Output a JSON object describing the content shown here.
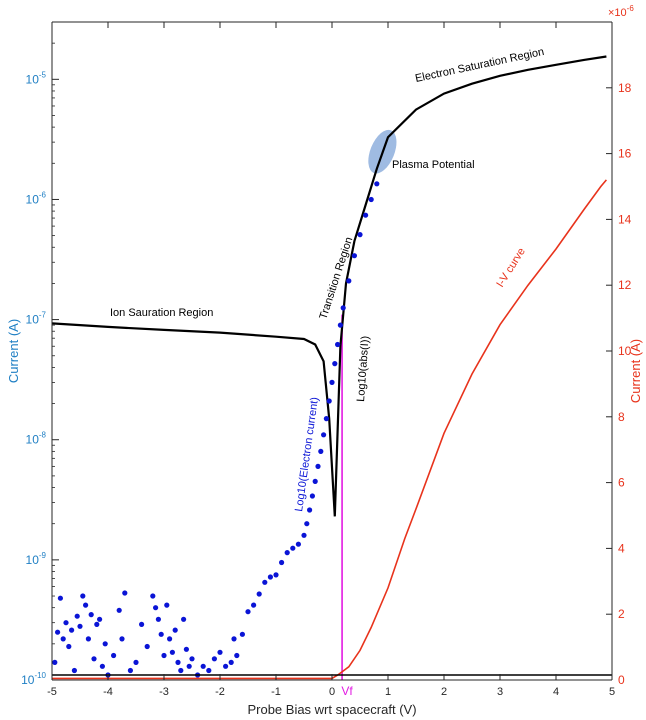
{
  "chart_data": {
    "type": "line",
    "xlabel": "Probe Bias wrt spacecraft (V)",
    "xlim": [
      -5,
      5
    ],
    "xticks": [
      "-5",
      "-4",
      "-3",
      "-2",
      "-1",
      "0",
      "1",
      "2",
      "3",
      "4",
      "5"
    ],
    "y_left": {
      "label": "Current (A)",
      "scale": "log",
      "lim": [
        1e-10,
        3e-05
      ],
      "ticks": [
        {
          "base": "10",
          "exp": "-10",
          "value": 1e-10
        },
        {
          "base": "10",
          "exp": "-9",
          "value": 1e-09
        },
        {
          "base": "10",
          "exp": "-8",
          "value": 1e-08
        },
        {
          "base": "10",
          "exp": "-7",
          "value": 1e-07
        },
        {
          "base": "10",
          "exp": "-6",
          "value": 1e-06
        },
        {
          "base": "10",
          "exp": "-5",
          "value": 1e-05
        }
      ],
      "color": "#1f7fc4"
    },
    "y_right": {
      "label": "Current (A)",
      "scale": "linear",
      "lim": [
        0,
        20
      ],
      "multiplier": "×10",
      "multiplier_exp": "-6",
      "ticks": [
        "0",
        "2",
        "4",
        "6",
        "8",
        "10",
        "12",
        "14",
        "16",
        "18"
      ],
      "color": "#e8331c"
    },
    "series": [
      {
        "axis": "left",
        "style": "line",
        "color": "#000000",
        "x": [
          -5,
          -4,
          -3,
          -2,
          -1,
          -0.5,
          -0.3,
          -0.15,
          -0.05,
          0.05,
          0.15,
          0.25,
          0.4,
          0.6,
          0.8,
          1.0,
          1.5,
          2.0,
          2.5,
          3.0,
          3.5,
          4.0,
          4.5,
          4.9
        ],
        "y": [
          9.3e-08,
          8.7e-08,
          8.2e-08,
          7.8e-08,
          7.2e-08,
          6.9e-08,
          6.2e-08,
          4.5e-08,
          1.5e-08,
          2.3e-09,
          6e-08,
          2e-07,
          4.5e-07,
          9e-07,
          1.8e-06,
          3.3e-06,
          5.6e-06,
          7.6e-06,
          9.2e-06,
          1.07e-05,
          1.2e-05,
          1.32e-05,
          1.45e-05,
          1.55e-05
        ]
      },
      {
        "axis": "left",
        "style": "markers",
        "color": "#0a14d6",
        "x": [
          -4.95,
          -4.9,
          -4.85,
          -4.8,
          -4.75,
          -4.7,
          -4.65,
          -4.6,
          -4.55,
          -4.5,
          -4.45,
          -4.4,
          -4.35,
          -4.3,
          -4.25,
          -4.2,
          -4.15,
          -4.1,
          -4.05,
          -4.0,
          -3.9,
          -3.8,
          -3.75,
          -3.7,
          -3.6,
          -3.5,
          -3.4,
          -3.3,
          -3.2,
          -3.15,
          -3.1,
          -3.05,
          -3.0,
          -2.95,
          -2.9,
          -2.85,
          -2.8,
          -2.75,
          -2.7,
          -2.65,
          -2.6,
          -2.55,
          -2.5,
          -2.4,
          -2.3,
          -2.2,
          -2.1,
          -2.0,
          -1.9,
          -1.8,
          -1.75,
          -1.7,
          -1.6,
          -1.5,
          -1.4,
          -1.3,
          -1.2,
          -1.1,
          -1.0,
          -0.9,
          -0.8,
          -0.7,
          -0.6,
          -0.5,
          -0.45,
          -0.4,
          -0.35,
          -0.3,
          -0.25,
          -0.2,
          -0.15,
          -0.1,
          -0.05,
          0.0,
          0.05,
          0.1,
          0.15,
          0.2,
          0.3,
          0.4,
          0.5,
          0.6,
          0.7,
          0.8
        ],
        "y": [
          1.4e-10,
          2.5e-10,
          4.8e-10,
          2.2e-10,
          3e-10,
          1.9e-10,
          2.6e-10,
          1.2e-10,
          3.4e-10,
          2.8e-10,
          5e-10,
          4.2e-10,
          2.2e-10,
          3.5e-10,
          1.5e-10,
          2.9e-10,
          3.2e-10,
          1.3e-10,
          2e-10,
          1.1e-10,
          1.6e-10,
          3.8e-10,
          2.2e-10,
          5.3e-10,
          1.2e-10,
          1.4e-10,
          2.9e-10,
          1.9e-10,
          5e-10,
          4e-10,
          3.2e-10,
          2.4e-10,
          1.6e-10,
          4.2e-10,
          2.2e-10,
          1.7e-10,
          2.6e-10,
          1.4e-10,
          1.2e-10,
          3.2e-10,
          1.8e-10,
          1.3e-10,
          1.5e-10,
          1.1e-10,
          1.3e-10,
          1.2e-10,
          1.5e-10,
          1.7e-10,
          1.3e-10,
          1.4e-10,
          2.2e-10,
          1.6e-10,
          2.4e-10,
          3.7e-10,
          4.2e-10,
          5.2e-10,
          6.5e-10,
          7.2e-10,
          7.5e-10,
          9.5e-10,
          1.15e-09,
          1.25e-09,
          1.35e-09,
          1.6e-09,
          2e-09,
          2.6e-09,
          3.4e-09,
          4.5e-09,
          6e-09,
          8e-09,
          1.1e-08,
          1.5e-08,
          2.1e-08,
          3e-08,
          4.3e-08,
          6.2e-08,
          9e-08,
          1.25e-07,
          2.1e-07,
          3.4e-07,
          5.1e-07,
          7.4e-07,
          1e-06,
          1.35e-06
        ]
      },
      {
        "axis": "right",
        "style": "line",
        "color": "#e8331c",
        "x": [
          -5,
          0.0,
          0.1,
          0.3,
          0.5,
          0.7,
          1.0,
          1.3,
          1.5,
          2.0,
          2.5,
          3.0,
          3.5,
          4.0,
          4.5,
          4.8,
          4.9
        ],
        "y": [
          0.05,
          0.05,
          0.15,
          0.4,
          0.9,
          1.6,
          2.8,
          4.3,
          5.2,
          7.5,
          9.3,
          10.8,
          12.0,
          13.1,
          14.3,
          15.0,
          15.2
        ]
      },
      {
        "axis": "left",
        "style": "line",
        "color": "#000000",
        "x": [
          -5,
          5
        ],
        "y": [
          1.1e-10,
          1.1e-10
        ]
      }
    ],
    "vf_line": {
      "x": 0.18,
      "label": "Vf",
      "color": "#e21ae2"
    },
    "plasma_potential_marker": {
      "x": 0.9,
      "y": 2.5e-06,
      "color": "#7fa4d8"
    },
    "annotations": [
      {
        "text": "Electron Saturation Region",
        "color": "#000000"
      },
      {
        "text": "Plasma Potential",
        "color": "#000000"
      },
      {
        "text": "Transition Region",
        "color": "#000000"
      },
      {
        "text": "Ion Sauration Region",
        "color": "#000000"
      },
      {
        "text": "Log10(abs(I))",
        "color": "#000000"
      },
      {
        "text": "Log10(Electron current)",
        "color": "#0a14d6"
      },
      {
        "text": "I-V curve",
        "color": "#e8331c"
      }
    ],
    "grid": false,
    "legend": "none"
  }
}
